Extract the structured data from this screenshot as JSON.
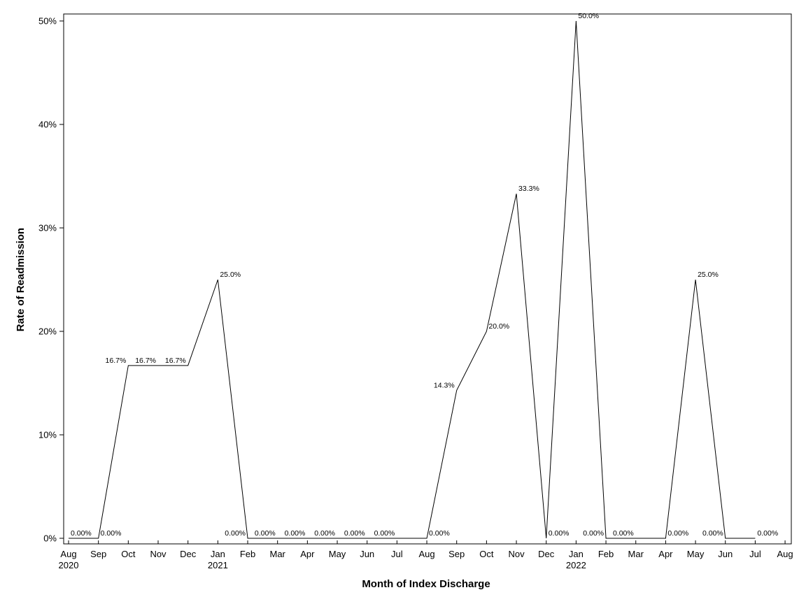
{
  "chart_data": {
    "type": "line",
    "title": "",
    "xlabel": "Month of Index Discharge",
    "ylabel": "Rate of Readmission",
    "ylim": [
      0,
      50
    ],
    "y_ticks": [
      "0%",
      "10%",
      "20%",
      "30%",
      "40%",
      "50%"
    ],
    "x_ticks": [
      {
        "month": "Aug",
        "year": "2020"
      },
      {
        "month": "Sep",
        "year": ""
      },
      {
        "month": "Oct",
        "year": ""
      },
      {
        "month": "Nov",
        "year": ""
      },
      {
        "month": "Dec",
        "year": ""
      },
      {
        "month": "Jan",
        "year": "2021"
      },
      {
        "month": "Feb",
        "year": ""
      },
      {
        "month": "Mar",
        "year": ""
      },
      {
        "month": "Apr",
        "year": ""
      },
      {
        "month": "May",
        "year": ""
      },
      {
        "month": "Jun",
        "year": ""
      },
      {
        "month": "Jul",
        "year": ""
      },
      {
        "month": "Aug",
        "year": ""
      },
      {
        "month": "Sep",
        "year": ""
      },
      {
        "month": "Oct",
        "year": ""
      },
      {
        "month": "Nov",
        "year": ""
      },
      {
        "month": "Dec",
        "year": ""
      },
      {
        "month": "Jan",
        "year": "2022"
      },
      {
        "month": "Feb",
        "year": ""
      },
      {
        "month": "Mar",
        "year": ""
      },
      {
        "month": "Apr",
        "year": ""
      },
      {
        "month": "May",
        "year": ""
      },
      {
        "month": "Jun",
        "year": ""
      },
      {
        "month": "Jul",
        "year": ""
      },
      {
        "month": "Aug",
        "year": ""
      }
    ],
    "grid": false,
    "legend": "none",
    "line_color": "#000000",
    "series": [
      {
        "points": [
          {
            "x": "2020-08",
            "y": 0,
            "label": "0.00%",
            "label_side": "right"
          },
          {
            "x": "2020-09",
            "y": 0,
            "label": "0.00%",
            "label_side": "right"
          },
          {
            "x": "2020-10",
            "y": 16.7,
            "label": "16.7%",
            "label_side": "left"
          },
          {
            "x": "2020-11",
            "y": 16.7,
            "label": "16.7%",
            "label_side": "left"
          },
          {
            "x": "2020-12",
            "y": 16.7,
            "label": "16.7%",
            "label_side": "left"
          },
          {
            "x": "2021-01",
            "y": 25.0,
            "label": "25.0%",
            "label_side": "right"
          },
          {
            "x": "2021-02",
            "y": 0,
            "label": "0.00%",
            "label_side": "left"
          },
          {
            "x": "2021-03",
            "y": 0,
            "label": "0.00%",
            "label_side": "left"
          },
          {
            "x": "2021-04",
            "y": 0,
            "label": "0.00%",
            "label_side": "left"
          },
          {
            "x": "2021-05",
            "y": 0,
            "label": "0.00%",
            "label_side": "left"
          },
          {
            "x": "2021-06",
            "y": 0,
            "label": "0.00%",
            "label_side": "left"
          },
          {
            "x": "2021-07",
            "y": 0,
            "label": "0.00%",
            "label_side": "left"
          },
          {
            "x": "2021-08",
            "y": 0,
            "label": "0.00%",
            "label_side": "right"
          },
          {
            "x": "2021-09",
            "y": 14.3,
            "label": "14.3%",
            "label_side": "left"
          },
          {
            "x": "2021-10",
            "y": 20.0,
            "label": "20.0%",
            "label_side": "right"
          },
          {
            "x": "2021-11",
            "y": 33.3,
            "label": "33.3%",
            "label_side": "right"
          },
          {
            "x": "2021-12",
            "y": 0,
            "label": "0.00%",
            "label_side": "right"
          },
          {
            "x": "2022-01",
            "y": 50.0,
            "label": "50.0%",
            "label_side": "right"
          },
          {
            "x": "2022-02",
            "y": 0,
            "label": "0.00%",
            "label_side": "left"
          },
          {
            "x": "2022-03",
            "y": 0,
            "label": "0.00%",
            "label_side": "left"
          },
          {
            "x": "2022-04",
            "y": 0,
            "label": "0.00%",
            "label_side": "right"
          },
          {
            "x": "2022-05",
            "y": 25.0,
            "label": "25.0%",
            "label_side": "right"
          },
          {
            "x": "2022-06",
            "y": 0,
            "label": "0.00%",
            "label_side": "left"
          },
          {
            "x": "2022-07",
            "y": 0,
            "label": "0.00%",
            "label_side": "right"
          }
        ]
      }
    ]
  }
}
